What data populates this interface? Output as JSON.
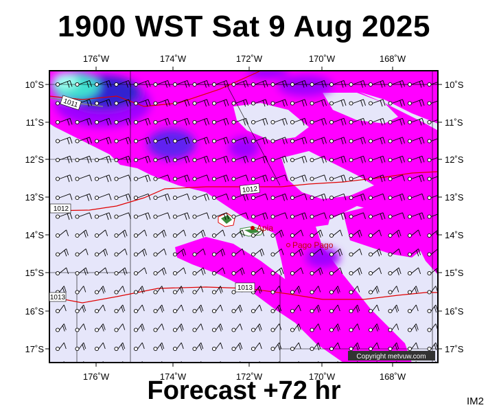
{
  "header": {
    "title": "1900 WST Sat 9 Aug 2025"
  },
  "footer": {
    "forecast": "Forecast +72 hr",
    "code": "IM2"
  },
  "map": {
    "lon_labels": [
      "176˚W",
      "174˚W",
      "172˚W",
      "170˚W",
      "168˚W"
    ],
    "lat_labels": [
      "10˚S",
      "11˚S",
      "12˚S",
      "13˚S",
      "14˚S",
      "15˚S",
      "16˚S",
      "17˚S"
    ],
    "isobars": [
      "1011",
      "1012",
      "1012",
      "1013",
      "1013"
    ],
    "places": [
      "Apia",
      "Pago Pago"
    ],
    "copyright": "Copyright metvuw.com",
    "colors": {
      "background": "#e6e6fa",
      "precip_light": "#ff00ff",
      "precip_medium": "#a000ff",
      "precip_heavy": "#4020e0",
      "precip_extreme": "#40e0d0",
      "isobar": "#e00000",
      "place": "#c00000",
      "land": "#3a8a3a"
    },
    "wind_symbol": "barb"
  }
}
